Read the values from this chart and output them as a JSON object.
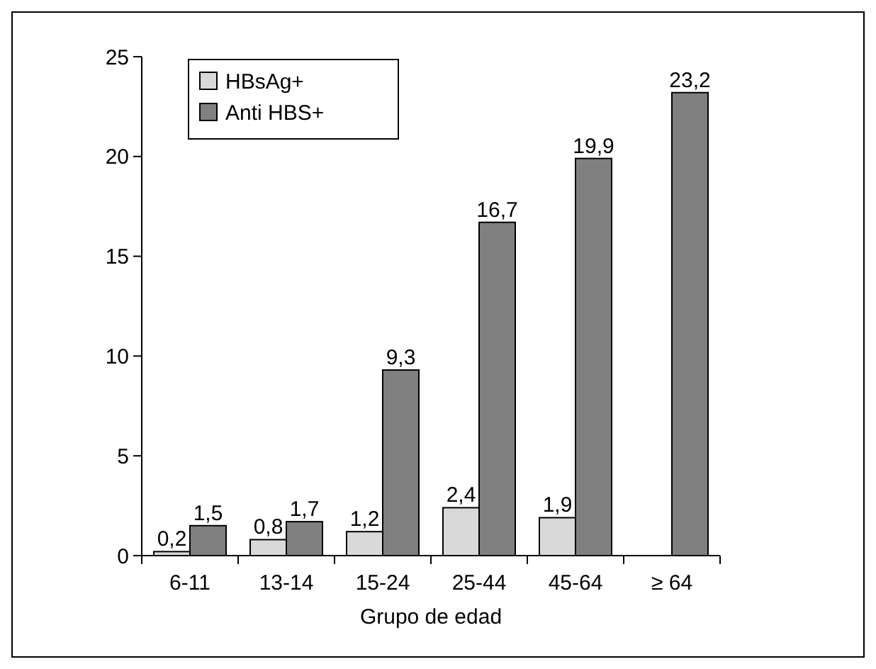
{
  "chart_data": {
    "type": "bar",
    "xlabel": "Grupo de edad",
    "categories": [
      "6-11",
      "13-14",
      "15-24",
      "25-44",
      "45-64",
      "≥ 64"
    ],
    "series": [
      {
        "name": "HBsAg+",
        "color": "#d9d9d9",
        "values": [
          0.2,
          0.8,
          1.2,
          2.4,
          1.9,
          null
        ],
        "value_labels": [
          "0,2",
          "0,8",
          "1,2",
          "2,4",
          "1,9",
          null
        ]
      },
      {
        "name": "Anti HBS+",
        "color": "#808080",
        "values": [
          1.5,
          1.7,
          9.3,
          16.7,
          19.9,
          23.2
        ],
        "value_labels": [
          "1,5",
          "1,7",
          "9,3",
          "16,7",
          "19,9",
          "23,2"
        ]
      }
    ],
    "ylim": [
      0,
      25
    ],
    "yticks": [
      0,
      5,
      10,
      15,
      20,
      25
    ],
    "grid": false,
    "legend": "top left"
  }
}
